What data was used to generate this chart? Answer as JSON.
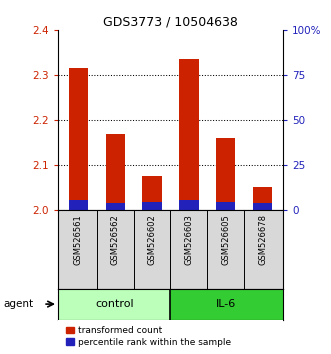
{
  "title": "GDS3773 / 10504638",
  "samples": [
    "GSM526561",
    "GSM526562",
    "GSM526602",
    "GSM526603",
    "GSM526605",
    "GSM526678"
  ],
  "transformed_counts": [
    2.315,
    2.17,
    2.075,
    2.335,
    2.16,
    2.05
  ],
  "percentile_ranks": [
    5.5,
    4.0,
    4.5,
    5.5,
    4.5,
    4.0
  ],
  "ylim_left": [
    2.0,
    2.4
  ],
  "ylim_right": [
    0,
    100
  ],
  "yticks_left": [
    2.0,
    2.1,
    2.2,
    2.3,
    2.4
  ],
  "yticks_right": [
    0,
    25,
    50,
    75,
    100
  ],
  "ytick_labels_right": [
    "0",
    "25",
    "50",
    "75",
    "100%"
  ],
  "red_color": "#cc2200",
  "blue_color": "#2222bb",
  "control_color": "#bbffbb",
  "il6_color": "#33cc33",
  "group_label_fontsize": 8,
  "title_fontsize": 9,
  "legend_fontsize": 6.5,
  "axis_color_left": "#cc2200",
  "axis_color_right": "#2222bb",
  "sample_bg_color": "#d8d8d8",
  "gridline_color": "#000000"
}
